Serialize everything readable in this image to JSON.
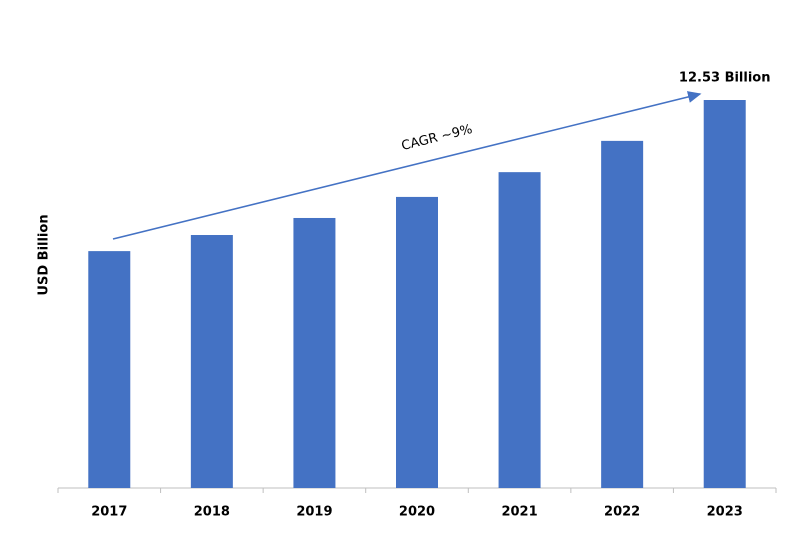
{
  "chart_data": {
    "type": "bar",
    "y_label": "USD Billion",
    "annotation": "CAGR ~9%",
    "categories": [
      "2017",
      "2018",
      "2019",
      "2020",
      "2021",
      "2022",
      "2023"
    ],
    "values": [
      7.65,
      8.17,
      8.72,
      9.4,
      10.2,
      11.21,
      12.53
    ],
    "value_labels": [
      null,
      null,
      null,
      null,
      null,
      null,
      "12.53 Billion"
    ],
    "color": "#4472c4",
    "ylim": [
      0,
      12.53
    ]
  }
}
